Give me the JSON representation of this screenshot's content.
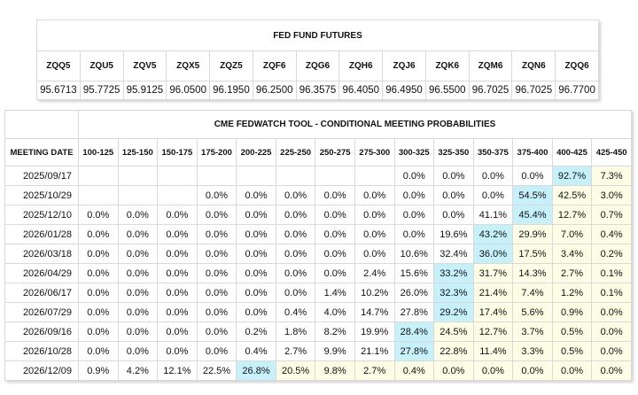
{
  "futures": {
    "title": "FED FUND FUTURES",
    "codes": [
      "ZQQ5",
      "ZQU5",
      "ZQV5",
      "ZQX5",
      "ZQZ5",
      "ZQF6",
      "ZQG6",
      "ZQH6",
      "ZQJ6",
      "ZQK6",
      "ZQM6",
      "ZQN6",
      "ZQQ6"
    ],
    "prices": [
      "95.6713",
      "95.7725",
      "95.9125",
      "96.0500",
      "96.1950",
      "96.2500",
      "96.3575",
      "96.4050",
      "96.4950",
      "96.5500",
      "96.7025",
      "96.7025",
      "96.7700"
    ]
  },
  "probabilities": {
    "title": "CME FEDWATCH TOOL - CONDITIONAL MEETING PROBABILITIES",
    "date_header": "MEETING DATE",
    "ranges": [
      "100-125",
      "125-150",
      "150-175",
      "175-200",
      "200-225",
      "225-250",
      "250-275",
      "275-300",
      "300-325",
      "325-350",
      "350-375",
      "375-400",
      "400-425",
      "425-450"
    ],
    "highlight_colors": {
      "max": "#c6f1fb",
      "above_current": "#fcfde4"
    },
    "rows": [
      {
        "date": "2025/09/17",
        "cells": [
          "",
          "",
          "",
          "",
          "",
          "",
          "",
          "",
          "0.0%",
          "0.0%",
          "0.0%",
          "0.0%",
          "92.7%",
          "7.3%"
        ],
        "styles": [
          "",
          "",
          "",
          "",
          "",
          "",
          "",
          "",
          "",
          "",
          "",
          "",
          "b",
          "y"
        ]
      },
      {
        "date": "2025/10/29",
        "cells": [
          "",
          "",
          "",
          "0.0%",
          "0.0%",
          "0.0%",
          "0.0%",
          "0.0%",
          "0.0%",
          "0.0%",
          "0.0%",
          "54.5%",
          "42.5%",
          "3.0%"
        ],
        "styles": [
          "",
          "",
          "",
          "",
          "",
          "",
          "",
          "",
          "",
          "",
          "",
          "b",
          "y",
          "y"
        ]
      },
      {
        "date": "2025/12/10",
        "cells": [
          "0.0%",
          "0.0%",
          "0.0%",
          "0.0%",
          "0.0%",
          "0.0%",
          "0.0%",
          "0.0%",
          "0.0%",
          "0.0%",
          "41.1%",
          "45.4%",
          "12.7%",
          "0.7%"
        ],
        "styles": [
          "",
          "",
          "",
          "",
          "",
          "",
          "",
          "",
          "",
          "",
          "",
          "b",
          "y",
          "y"
        ]
      },
      {
        "date": "2026/01/28",
        "cells": [
          "0.0%",
          "0.0%",
          "0.0%",
          "0.0%",
          "0.0%",
          "0.0%",
          "0.0%",
          "0.0%",
          "0.0%",
          "19.6%",
          "43.2%",
          "29.9%",
          "7.0%",
          "0.4%"
        ],
        "styles": [
          "",
          "",
          "",
          "",
          "",
          "",
          "",
          "",
          "",
          "",
          "b",
          "y",
          "y",
          "y"
        ]
      },
      {
        "date": "2026/03/18",
        "cells": [
          "0.0%",
          "0.0%",
          "0.0%",
          "0.0%",
          "0.0%",
          "0.0%",
          "0.0%",
          "0.0%",
          "10.6%",
          "32.4%",
          "36.0%",
          "17.5%",
          "3.4%",
          "0.2%"
        ],
        "styles": [
          "",
          "",
          "",
          "",
          "",
          "",
          "",
          "",
          "",
          "",
          "b",
          "y",
          "y",
          "y"
        ]
      },
      {
        "date": "2026/04/29",
        "cells": [
          "0.0%",
          "0.0%",
          "0.0%",
          "0.0%",
          "0.0%",
          "0.0%",
          "0.0%",
          "2.4%",
          "15.6%",
          "33.2%",
          "31.7%",
          "14.3%",
          "2.7%",
          "0.1%"
        ],
        "styles": [
          "",
          "",
          "",
          "",
          "",
          "",
          "",
          "",
          "",
          "b",
          "y",
          "y",
          "y",
          "y"
        ]
      },
      {
        "date": "2026/06/17",
        "cells": [
          "0.0%",
          "0.0%",
          "0.0%",
          "0.0%",
          "0.0%",
          "0.0%",
          "1.4%",
          "10.2%",
          "26.0%",
          "32.3%",
          "21.4%",
          "7.4%",
          "1.2%",
          "0.1%"
        ],
        "styles": [
          "",
          "",
          "",
          "",
          "",
          "",
          "",
          "",
          "",
          "b",
          "y",
          "y",
          "y",
          "y"
        ]
      },
      {
        "date": "2026/07/29",
        "cells": [
          "0.0%",
          "0.0%",
          "0.0%",
          "0.0%",
          "0.0%",
          "0.4%",
          "4.0%",
          "14.7%",
          "27.8%",
          "29.2%",
          "17.4%",
          "5.6%",
          "0.9%",
          "0.0%"
        ],
        "styles": [
          "",
          "",
          "",
          "",
          "",
          "",
          "",
          "",
          "",
          "b",
          "y",
          "y",
          "y",
          "y"
        ]
      },
      {
        "date": "2026/09/16",
        "cells": [
          "0.0%",
          "0.0%",
          "0.0%",
          "0.0%",
          "0.2%",
          "1.8%",
          "8.2%",
          "19.9%",
          "28.4%",
          "24.5%",
          "12.7%",
          "3.7%",
          "0.5%",
          "0.0%"
        ],
        "styles": [
          "",
          "",
          "",
          "",
          "",
          "",
          "",
          "",
          "b",
          "y",
          "y",
          "y",
          "y",
          "y"
        ]
      },
      {
        "date": "2026/10/28",
        "cells": [
          "0.0%",
          "0.0%",
          "0.0%",
          "0.0%",
          "0.4%",
          "2.7%",
          "9.9%",
          "21.1%",
          "27.8%",
          "22.8%",
          "11.4%",
          "3.3%",
          "0.5%",
          "0.0%"
        ],
        "styles": [
          "",
          "",
          "",
          "",
          "",
          "",
          "",
          "",
          "b",
          "y",
          "y",
          "y",
          "y",
          "y"
        ]
      },
      {
        "date": "2026/12/09",
        "cells": [
          "0.9%",
          "4.2%",
          "12.1%",
          "22.5%",
          "26.8%",
          "20.5%",
          "9.8%",
          "2.7%",
          "0.4%",
          "0.0%",
          "0.0%",
          "0.0%",
          "0.0%",
          "0.0%"
        ],
        "styles": [
          "",
          "",
          "",
          "",
          "b",
          "y",
          "y",
          "y",
          "y",
          "y",
          "y",
          "y",
          "y",
          "y"
        ]
      }
    ]
  }
}
